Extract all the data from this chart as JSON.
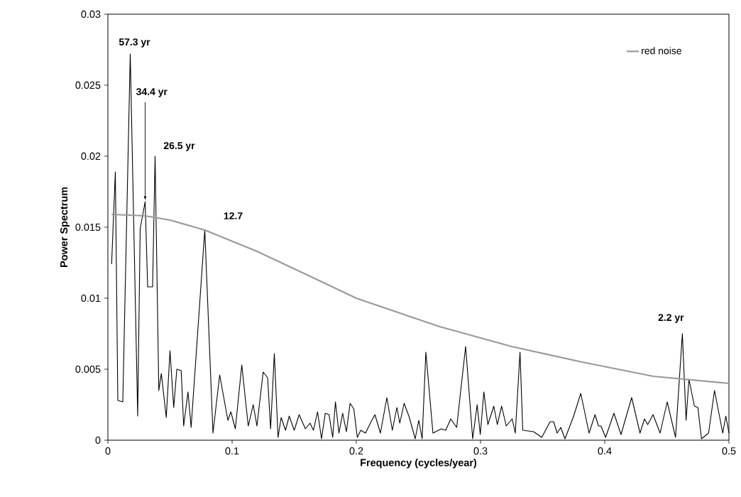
{
  "chart_data": {
    "type": "line",
    "xlabel": "Frequency (cycles/year)",
    "ylabel": "Power Spectrum",
    "xlim": [
      0,
      0.5
    ],
    "ylim": [
      0,
      0.03
    ],
    "xticks": [
      0,
      0.1,
      0.2,
      0.3,
      0.4,
      0.5
    ],
    "yticks": [
      0,
      0.005,
      0.01,
      0.015,
      0.02,
      0.025,
      0.03
    ],
    "grid": false,
    "legend": "top right",
    "marker": "none",
    "line_style": "solid",
    "series": [
      {
        "color": "#000000",
        "x": [
          0.003,
          0.006,
          0.008,
          0.012,
          0.018,
          0.024,
          0.026,
          0.03,
          0.032,
          0.036,
          0.038,
          0.041,
          0.043,
          0.047,
          0.05,
          0.053,
          0.0555,
          0.059,
          0.061,
          0.0645,
          0.067,
          0.078,
          0.0846,
          0.09,
          0.0966,
          0.099,
          0.1026,
          0.1078,
          0.113,
          0.117,
          0.12,
          0.125,
          0.1286,
          0.131,
          0.134,
          0.137,
          0.1395,
          0.143,
          0.146,
          0.15,
          0.154,
          0.159,
          0.1627,
          0.1655,
          0.1688,
          0.172,
          0.175,
          0.178,
          0.181,
          0.1832,
          0.186,
          0.189,
          0.192,
          0.195,
          0.198,
          0.2008,
          0.2036,
          0.2074,
          0.2113,
          0.215,
          0.2194,
          0.2246,
          0.229,
          0.2327,
          0.235,
          0.2385,
          0.2427,
          0.2474,
          0.2503,
          0.253,
          0.256,
          0.2617,
          0.2684,
          0.272,
          0.276,
          0.2808,
          0.288,
          0.2937,
          0.2973,
          0.2998,
          0.3027,
          0.3059,
          0.3107,
          0.3135,
          0.317,
          0.3207,
          0.3255,
          0.328,
          0.3318,
          0.334,
          0.3427,
          0.3493,
          0.356,
          0.3589,
          0.3617,
          0.3646,
          0.368,
          0.375,
          0.3807,
          0.3874,
          0.3922,
          0.395,
          0.397,
          0.4007,
          0.4074,
          0.4131,
          0.4217,
          0.4284,
          0.432,
          0.4346,
          0.4389,
          0.4446,
          0.4503,
          0.457,
          0.4625,
          0.4655,
          0.4678,
          0.4722,
          0.475,
          0.4779,
          0.4836,
          0.4884,
          0.495,
          0.4975,
          0.5
        ],
        "values": [
          0.0124,
          0.0189,
          0.0028,
          0.0027,
          0.0272,
          0.0017,
          0.0149,
          0.0168,
          0.0108,
          0.0108,
          0.02,
          0.0035,
          0.0047,
          0.0016,
          0.0063,
          0.0023,
          0.005,
          0.0049,
          0.001,
          0.0034,
          0.0009,
          0.0148,
          0.0005,
          0.0046,
          0.0014,
          0.002,
          0.0008,
          0.0053,
          0.001,
          0.0025,
          0.001,
          0.0048,
          0.0044,
          0.0008,
          0.0061,
          0.0002,
          0.0016,
          0.0007,
          0.0017,
          0.0007,
          0.0018,
          0.0008,
          0.0012,
          0.0007,
          0.002,
          0.0001,
          0.0019,
          0.0018,
          0.0002,
          0.0027,
          0.0005,
          0.0019,
          0.0006,
          0.0026,
          0.0022,
          0.0002,
          0.0007,
          0.0005,
          0.0012,
          0.0018,
          0.0005,
          0.003,
          0.0007,
          0.0023,
          0.0012,
          0.0026,
          0.0016,
          0.0001,
          0.0014,
          0.0001,
          0.0062,
          0.0005,
          0.0008,
          0.0007,
          0.0015,
          0.0009,
          0.0066,
          0.0001,
          0.0025,
          0.0004,
          0.0034,
          0.0011,
          0.0024,
          0.0011,
          0.0024,
          0.001,
          0.0015,
          0.0005,
          0.0062,
          0.0007,
          0.0006,
          0.0002,
          0.0013,
          0.0013,
          0.0005,
          0.0009,
          0.0001,
          0.0017,
          0.0033,
          0.0005,
          0.0018,
          0.001,
          0.001,
          0.0002,
          0.0019,
          0.0004,
          0.003,
          0.0005,
          0.0015,
          0.0011,
          0.0018,
          0.0005,
          0.0027,
          0.0002,
          0.0075,
          0.0014,
          0.0043,
          0.0024,
          0.0023,
          0.0001,
          0.0005,
          0.0035,
          0.0005,
          0.0017,
          0.0005
        ]
      },
      {
        "name": "red noise",
        "color": "#999999",
        "x": [
          0.003,
          0.03,
          0.05,
          0.078,
          0.12,
          0.159,
          0.2,
          0.267,
          0.325,
          0.382,
          0.439,
          0.5
        ],
        "values": [
          0.0159,
          0.0158,
          0.0155,
          0.0148,
          0.0133,
          0.0117,
          0.01,
          0.008,
          0.0066,
          0.0055,
          0.0045,
          0.004
        ]
      }
    ],
    "annotations": [
      {
        "text": "57.3 yr",
        "x": 0.018,
        "y": 0.0272
      },
      {
        "text": "34.4 yr",
        "x": 0.03,
        "y": 0.0168
      },
      {
        "text": "26.5 yr",
        "x": 0.038,
        "y": 0.02
      },
      {
        "text": "12.7",
        "x": 0.078,
        "y": 0.0148
      },
      {
        "text": "2.2 yr",
        "x": 0.4625,
        "y": 0.0075
      }
    ]
  }
}
